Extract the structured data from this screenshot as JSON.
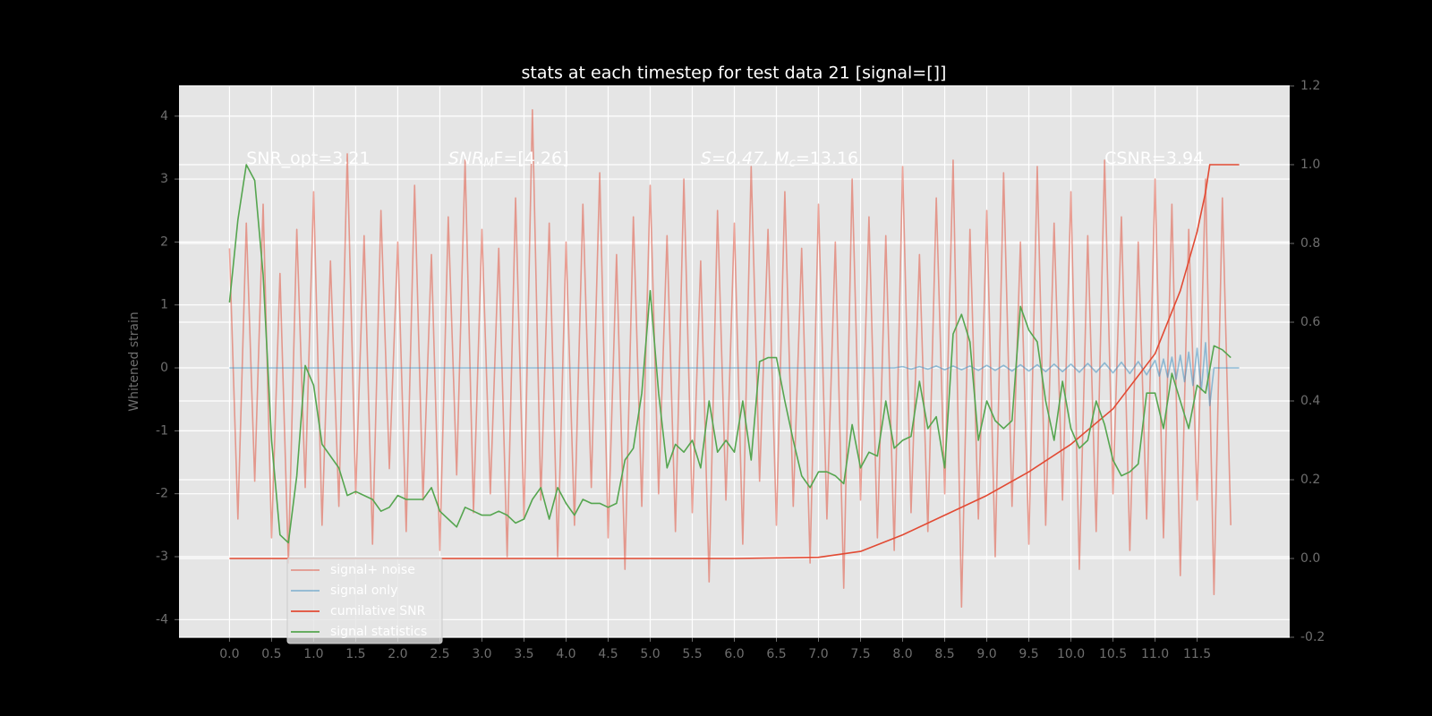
{
  "chart_data": {
    "type": "line",
    "title": "stats at each timestep for test data 21 [signal=[]]",
    "ylabel": "Whitened strain",
    "grid": true,
    "legend": "lower left",
    "xlim": [
      -0.6,
      12.6
    ],
    "ylim": [
      -4.28,
      4.48
    ],
    "y2lim": [
      -0.2,
      1.2
    ],
    "xticks": [
      {
        "value": 0,
        "label": "0.0"
      },
      0.5,
      {
        "value": 1,
        "label": "1.0"
      },
      1.5,
      {
        "value": 2,
        "label": "2.0"
      },
      2.5,
      {
        "value": 3,
        "label": "3.0"
      },
      3.5,
      {
        "value": 4,
        "label": "4.0"
      },
      4.5,
      {
        "value": 5,
        "label": "5.0"
      },
      5.5,
      {
        "value": 6,
        "label": "6.0"
      },
      6.5,
      {
        "value": 7,
        "label": "7.0"
      },
      7.5,
      {
        "value": 8,
        "label": "8.0"
      },
      8.5,
      {
        "value": 9,
        "label": "9.0"
      },
      9.5,
      {
        "value": 10,
        "label": "10.0"
      },
      10.5,
      {
        "value": 11,
        "label": "11.0"
      },
      11.5
    ],
    "yticks": [
      -4,
      -3,
      -2,
      -1,
      0,
      1,
      2,
      3,
      4
    ],
    "y2ticks": [
      -0.2,
      {
        "value": 0,
        "label": "0.0"
      },
      0.2,
      0.4,
      0.6,
      0.8,
      {
        "value": 1,
        "label": "1.0"
      },
      1.2
    ],
    "annotations": [
      {
        "text": "SNR_opt=3.21"
      },
      {
        "text": "SNR",
        "sub": "M",
        "tail": "F=[4.26]"
      },
      {
        "text": "S=0.47, M",
        "sub": "c",
        "tail": "=13.16"
      },
      {
        "text": "CSNR=3.94"
      }
    ],
    "x": [
      0.0,
      0.1,
      0.2,
      0.3,
      0.4,
      0.5,
      0.6,
      0.7,
      0.8,
      0.9,
      1.0,
      1.1,
      1.2,
      1.3,
      1.4,
      1.5,
      1.6,
      1.7,
      1.8,
      1.9,
      2.0,
      2.1,
      2.2,
      2.3,
      2.4,
      2.5,
      2.6,
      2.7,
      2.8,
      2.9,
      3.0,
      3.1,
      3.2,
      3.3,
      3.4,
      3.5,
      3.6,
      3.7,
      3.8,
      3.9,
      4.0,
      4.1,
      4.2,
      4.3,
      4.4,
      4.5,
      4.6,
      4.7,
      4.8,
      4.9,
      5.0,
      5.1,
      5.2,
      5.3,
      5.4,
      5.5,
      5.6,
      5.7,
      5.8,
      5.9,
      6.0,
      6.1,
      6.2,
      6.3,
      6.4,
      6.5,
      6.6,
      6.7,
      6.8,
      6.9,
      7.0,
      7.1,
      7.2,
      7.3,
      7.4,
      7.5,
      7.6,
      7.7,
      7.8,
      7.9,
      8.0,
      8.1,
      8.2,
      8.3,
      8.4,
      8.5,
      8.6,
      8.7,
      8.8,
      8.9,
      9.0,
      9.1,
      9.2,
      9.3,
      9.4,
      9.5,
      9.6,
      9.7,
      9.8,
      9.9,
      10.0,
      10.1,
      10.2,
      10.3,
      10.4,
      10.5,
      10.6,
      10.7,
      10.8,
      10.9,
      11.0,
      11.1,
      11.2,
      11.3,
      11.4,
      11.5,
      11.6,
      11.7,
      11.8,
      11.9
    ],
    "series": [
      {
        "name": "signal+ noise",
        "color": "#e24a33",
        "alpha": 0.5,
        "values": [
          1.9,
          -2.4,
          2.3,
          -1.8,
          2.6,
          -2.7,
          1.5,
          -3.1,
          2.2,
          -1.9,
          2.8,
          -2.5,
          1.7,
          -2.2,
          3.4,
          -2.0,
          2.1,
          -2.8,
          2.5,
          -1.6,
          2.0,
          -2.6,
          2.9,
          -2.1,
          1.8,
          -2.9,
          2.4,
          -1.7,
          3.3,
          -2.3,
          2.2,
          -2.0,
          1.9,
          -3.0,
          2.7,
          -2.4,
          4.1,
          -2.1,
          2.3,
          -3.0,
          2.0,
          -2.5,
          2.6,
          -1.9,
          3.1,
          -2.7,
          1.8,
          -3.2,
          2.4,
          -2.2,
          2.9,
          -2.0,
          2.1,
          -2.6,
          3.0,
          -2.3,
          1.7,
          -3.4,
          2.5,
          -2.1,
          2.3,
          -2.8,
          3.2,
          -1.8,
          2.2,
          -2.5,
          2.8,
          -2.2,
          1.9,
          -3.1,
          2.6,
          -2.4,
          2.0,
          -3.5,
          3.0,
          -2.1,
          2.4,
          -2.7,
          2.1,
          -2.9,
          3.2,
          -2.3,
          1.8,
          -2.6,
          2.7,
          -2.0,
          3.3,
          -3.8,
          2.2,
          -2.4,
          2.5,
          -3.0,
          3.1,
          -2.2,
          2.0,
          -2.8,
          3.2,
          -2.5,
          2.3,
          -2.1,
          2.8,
          -3.2,
          2.1,
          -2.6,
          3.3,
          -2.0,
          2.4,
          -2.9,
          2.0,
          -2.4,
          3.0,
          -2.7,
          2.6,
          -3.3,
          2.2,
          -2.1,
          3.0,
          -3.6,
          2.7,
          -2.5
        ]
      },
      {
        "name": "signal only",
        "color": "#348abd",
        "alpha": 0.5,
        "x": [
          0,
          7.9,
          8.0,
          8.1,
          8.2,
          8.3,
          8.4,
          8.5,
          8.6,
          8.7,
          8.8,
          8.9,
          9.0,
          9.1,
          9.2,
          9.3,
          9.4,
          9.5,
          9.6,
          9.7,
          9.8,
          9.9,
          10.0,
          10.1,
          10.2,
          10.3,
          10.4,
          10.5,
          10.6,
          10.7,
          10.8,
          10.9,
          11.0,
          11.05,
          11.1,
          11.15,
          11.2,
          11.25,
          11.3,
          11.35,
          11.4,
          11.45,
          11.5,
          11.55,
          11.6,
          11.65,
          11.7,
          12.0
        ],
        "values": [
          0,
          0,
          0.02,
          -0.02,
          0.02,
          -0.02,
          0.03,
          -0.03,
          0.03,
          -0.03,
          0.03,
          -0.04,
          0.04,
          -0.04,
          0.04,
          -0.05,
          0.05,
          -0.05,
          0.05,
          -0.06,
          0.06,
          -0.06,
          0.06,
          -0.07,
          0.07,
          -0.07,
          0.08,
          -0.08,
          0.09,
          -0.09,
          0.1,
          -0.11,
          0.12,
          -0.13,
          0.14,
          -0.15,
          0.17,
          -0.18,
          0.2,
          -0.22,
          0.25,
          -0.28,
          0.31,
          -0.35,
          0.4,
          -0.6,
          0,
          0
        ]
      },
      {
        "name": "cumilative SNR",
        "color": "#e24a33",
        "axis": "y2",
        "x": [
          0,
          6.0,
          7.0,
          7.5,
          8.0,
          8.5,
          9.0,
          9.5,
          10.0,
          10.5,
          11.0,
          11.3,
          11.5,
          11.6,
          11.65,
          12.0
        ],
        "values": [
          0,
          0,
          0.003,
          0.018,
          0.06,
          0.11,
          0.16,
          0.22,
          0.29,
          0.38,
          0.52,
          0.68,
          0.83,
          0.93,
          1.0,
          1.0
        ]
      },
      {
        "name": "signal statistics",
        "color": "#55a54f",
        "axis": "y2",
        "values": [
          0.65,
          0.86,
          1.0,
          0.96,
          0.72,
          0.3,
          0.06,
          0.04,
          0.21,
          0.49,
          0.44,
          0.29,
          0.26,
          0.23,
          0.16,
          0.17,
          0.16,
          0.15,
          0.12,
          0.13,
          0.16,
          0.15,
          0.15,
          0.15,
          0.18,
          0.12,
          0.1,
          0.08,
          0.13,
          0.12,
          0.11,
          0.11,
          0.12,
          0.11,
          0.09,
          0.1,
          0.15,
          0.18,
          0.1,
          0.18,
          0.14,
          0.11,
          0.15,
          0.14,
          0.14,
          0.13,
          0.14,
          0.25,
          0.28,
          0.42,
          0.68,
          0.42,
          0.23,
          0.29,
          0.27,
          0.3,
          0.23,
          0.4,
          0.27,
          0.3,
          0.27,
          0.4,
          0.25,
          0.5,
          0.51,
          0.51,
          0.4,
          0.3,
          0.21,
          0.18,
          0.22,
          0.22,
          0.21,
          0.19,
          0.34,
          0.23,
          0.27,
          0.26,
          0.4,
          0.28,
          0.3,
          0.31,
          0.45,
          0.33,
          0.36,
          0.23,
          0.57,
          0.62,
          0.55,
          0.3,
          0.4,
          0.35,
          0.33,
          0.35,
          0.64,
          0.58,
          0.55,
          0.4,
          0.3,
          0.45,
          0.33,
          0.28,
          0.3,
          0.4,
          0.34,
          0.25,
          0.21,
          0.22,
          0.24,
          0.42,
          0.42,
          0.33,
          0.47,
          0.4,
          0.33,
          0.44,
          0.42,
          0.54,
          0.53,
          0.51
        ]
      }
    ]
  }
}
